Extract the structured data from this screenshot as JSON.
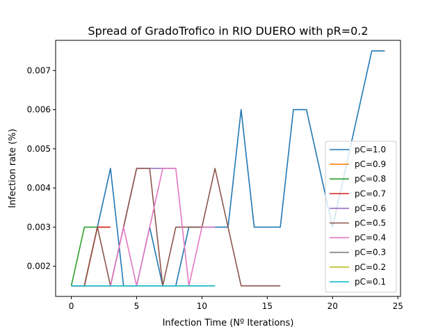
{
  "chart_data": {
    "type": "line",
    "title": "Spread of GradoTrofico in RIO DUERO with pR=0.2",
    "xlabel": "Infection Time (Nº Iterations)",
    "ylabel": "Infection rate (%)",
    "xlim": [
      -1.2,
      25.2
    ],
    "ylim": [
      0.00123,
      0.00777
    ],
    "xticks": [
      0,
      5,
      10,
      15,
      20,
      25
    ],
    "yticks": [
      0.002,
      0.003,
      0.004,
      0.005,
      0.006,
      0.007
    ],
    "ytick_labels": [
      "0.002",
      "0.003",
      "0.004",
      "0.005",
      "0.006",
      "0.007"
    ],
    "grid": false,
    "legend_position": "lower right",
    "series": [
      {
        "name": "pC=1.0",
        "color": "#1f77b4",
        "x": [
          0,
          1,
          2,
          3,
          4,
          5,
          6,
          7,
          8,
          9,
          10,
          11,
          12,
          13,
          14,
          15,
          16,
          17,
          18,
          19,
          20,
          21,
          22,
          23,
          24
        ],
        "y": [
          0.0015,
          0.0015,
          0.003,
          0.0045,
          0.0015,
          0.0015,
          0.003,
          0.0015,
          0.0015,
          0.003,
          0.003,
          0.003,
          0.003,
          0.006,
          0.003,
          0.003,
          0.003,
          0.006,
          0.006,
          0.0045,
          0.003,
          0.0045,
          0.006,
          0.0075,
          0.0075
        ]
      },
      {
        "name": "pC=0.9",
        "color": "#ff7f0e",
        "x": [
          0,
          1,
          2,
          3
        ],
        "y": [
          0.0015,
          0.0015,
          0.003,
          0.003
        ]
      },
      {
        "name": "pC=0.8",
        "color": "#2ca02c",
        "x": [
          0,
          1,
          2
        ],
        "y": [
          0.0015,
          0.003,
          0.003
        ]
      },
      {
        "name": "pC=0.7",
        "color": "#d62728",
        "x": [
          0,
          1,
          2,
          3
        ],
        "y": [
          0.0015,
          0.0015,
          0.003,
          0.003
        ]
      },
      {
        "name": "pC=0.6",
        "color": "#9467bd",
        "x": [
          0,
          1,
          2,
          3,
          4,
          5,
          6,
          7,
          8
        ],
        "y": [
          0.0015,
          0.0015,
          0.0015,
          0.0015,
          0.003,
          0.0045,
          0.0045,
          0.0045,
          0.0045
        ]
      },
      {
        "name": "pC=0.5",
        "color": "#8c564b",
        "x": [
          0,
          1,
          2,
          3,
          4,
          5,
          6,
          7,
          8,
          9,
          10,
          11,
          12,
          13,
          14,
          15,
          16
        ],
        "y": [
          0.0015,
          0.0015,
          0.003,
          0.0015,
          0.003,
          0.0045,
          0.0045,
          0.0015,
          0.003,
          0.003,
          0.003,
          0.0045,
          0.003,
          0.0015,
          0.0015,
          0.0015,
          0.0015
        ]
      },
      {
        "name": "pC=0.4",
        "color": "#e377c2",
        "x": [
          0,
          1,
          2,
          3,
          4,
          5,
          6,
          7,
          8,
          9,
          10,
          11
        ],
        "y": [
          0.0015,
          0.0015,
          0.0015,
          0.0015,
          0.003,
          0.0015,
          0.003,
          0.0045,
          0.0045,
          0.0015,
          0.003,
          0.003
        ]
      },
      {
        "name": "pC=0.3",
        "color": "#7f7f7f",
        "x": [
          0,
          1,
          2,
          3,
          4,
          5,
          6,
          7,
          8,
          9,
          10,
          11
        ],
        "y": [
          0.0015,
          0.0015,
          0.0015,
          0.0015,
          0.0015,
          0.0015,
          0.0015,
          0.0015,
          0.0015,
          0.0015,
          0.0015,
          0.0015
        ]
      },
      {
        "name": "pC=0.2",
        "color": "#bcbd22",
        "x": [
          0,
          1,
          2,
          3,
          4,
          5,
          6,
          7,
          8,
          9,
          10,
          11
        ],
        "y": [
          0.0015,
          0.0015,
          0.0015,
          0.0015,
          0.0015,
          0.0015,
          0.0015,
          0.0015,
          0.0015,
          0.0015,
          0.0015,
          0.0015
        ]
      },
      {
        "name": "pC=0.1",
        "color": "#17becf",
        "x": [
          0,
          1,
          2,
          3,
          4,
          5,
          6,
          7,
          8,
          9,
          10,
          11
        ],
        "y": [
          0.0015,
          0.0015,
          0.0015,
          0.0015,
          0.0015,
          0.0015,
          0.0015,
          0.0015,
          0.0015,
          0.0015,
          0.0015,
          0.0015
        ]
      }
    ]
  }
}
